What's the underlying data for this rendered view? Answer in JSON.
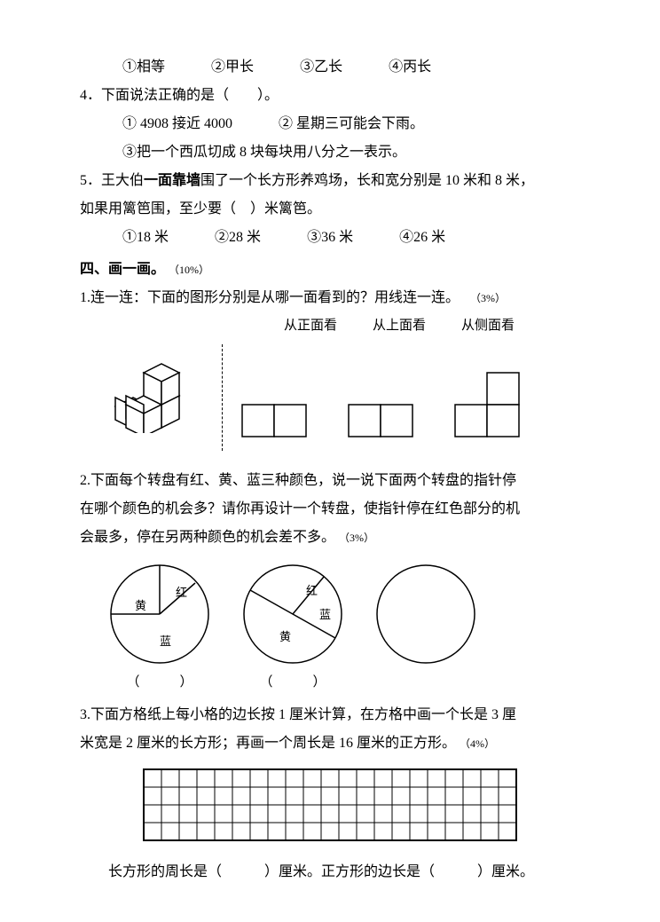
{
  "q3_options": {
    "o1": "①相等",
    "o2": "②甲长",
    "o3": "③乙长",
    "o4": "④丙长"
  },
  "q4": {
    "stem": "4．下面说法正确的是（　　）。",
    "o1": "① 4908 接近 4000",
    "o2": "② 星期三可能会下雨。",
    "o3": "③把一个西瓜切成 8 块每块用八分之一表示。"
  },
  "q5": {
    "stem_a": "5．王大伯",
    "stem_bold": "一面靠墙",
    "stem_b": "围了一个长方形养鸡场，长和宽分别是 10 米和 8 米，",
    "stem_c": "如果用篱笆围，至少要（　）米篱笆。",
    "o1": "①18 米",
    "o2": "②28 米",
    "o3": "③36 米",
    "o4": "④26 米"
  },
  "section4": {
    "title": "四、画一画。",
    "pct": "（10%）"
  },
  "s4q1": {
    "stem": "1.连一连：下面的图形分别是从哪一面看到的？用线连一连。",
    "pct": "（3%）",
    "label_front": "从正面看",
    "label_top": "从上面看",
    "label_side": "从侧面看"
  },
  "s4q2": {
    "line1": "2.下面每个转盘有红、黄、蓝三种颜色，说一说下面两个转盘的指针停",
    "line2": "在哪个颜色的机会多？请你再设计一个转盘，使指针停在红色部分的机",
    "line3": "会最多，停在另两种颜色的机会差不多。",
    "pct": "（3%）",
    "sp1": {
      "red": "红",
      "yellow": "黄",
      "blue": "蓝",
      "caption": "（　　　）"
    },
    "sp2": {
      "red": "红",
      "yellow": "黄",
      "blue": "蓝",
      "caption": "（　　　）"
    }
  },
  "s4q3": {
    "line1": "3.下面方格纸上每小格的边长按 1 厘米计算，在方格中画一个长是 3 厘",
    "line2": "米宽是 2 厘米的长方形；再画一个周长是 16 厘米的正方形。",
    "pct": "（4%）",
    "grid": {
      "cols": 21,
      "rows": 4,
      "cell": 20
    },
    "answer_line": "长方形的周长是（　　　）厘米。正方形的边长是（　　　）厘米。"
  },
  "style": {
    "stroke": "#000000",
    "stroke_width": 1.5,
    "background": "#ffffff",
    "fontsize_body": 16,
    "fontsize_small": 12
  }
}
